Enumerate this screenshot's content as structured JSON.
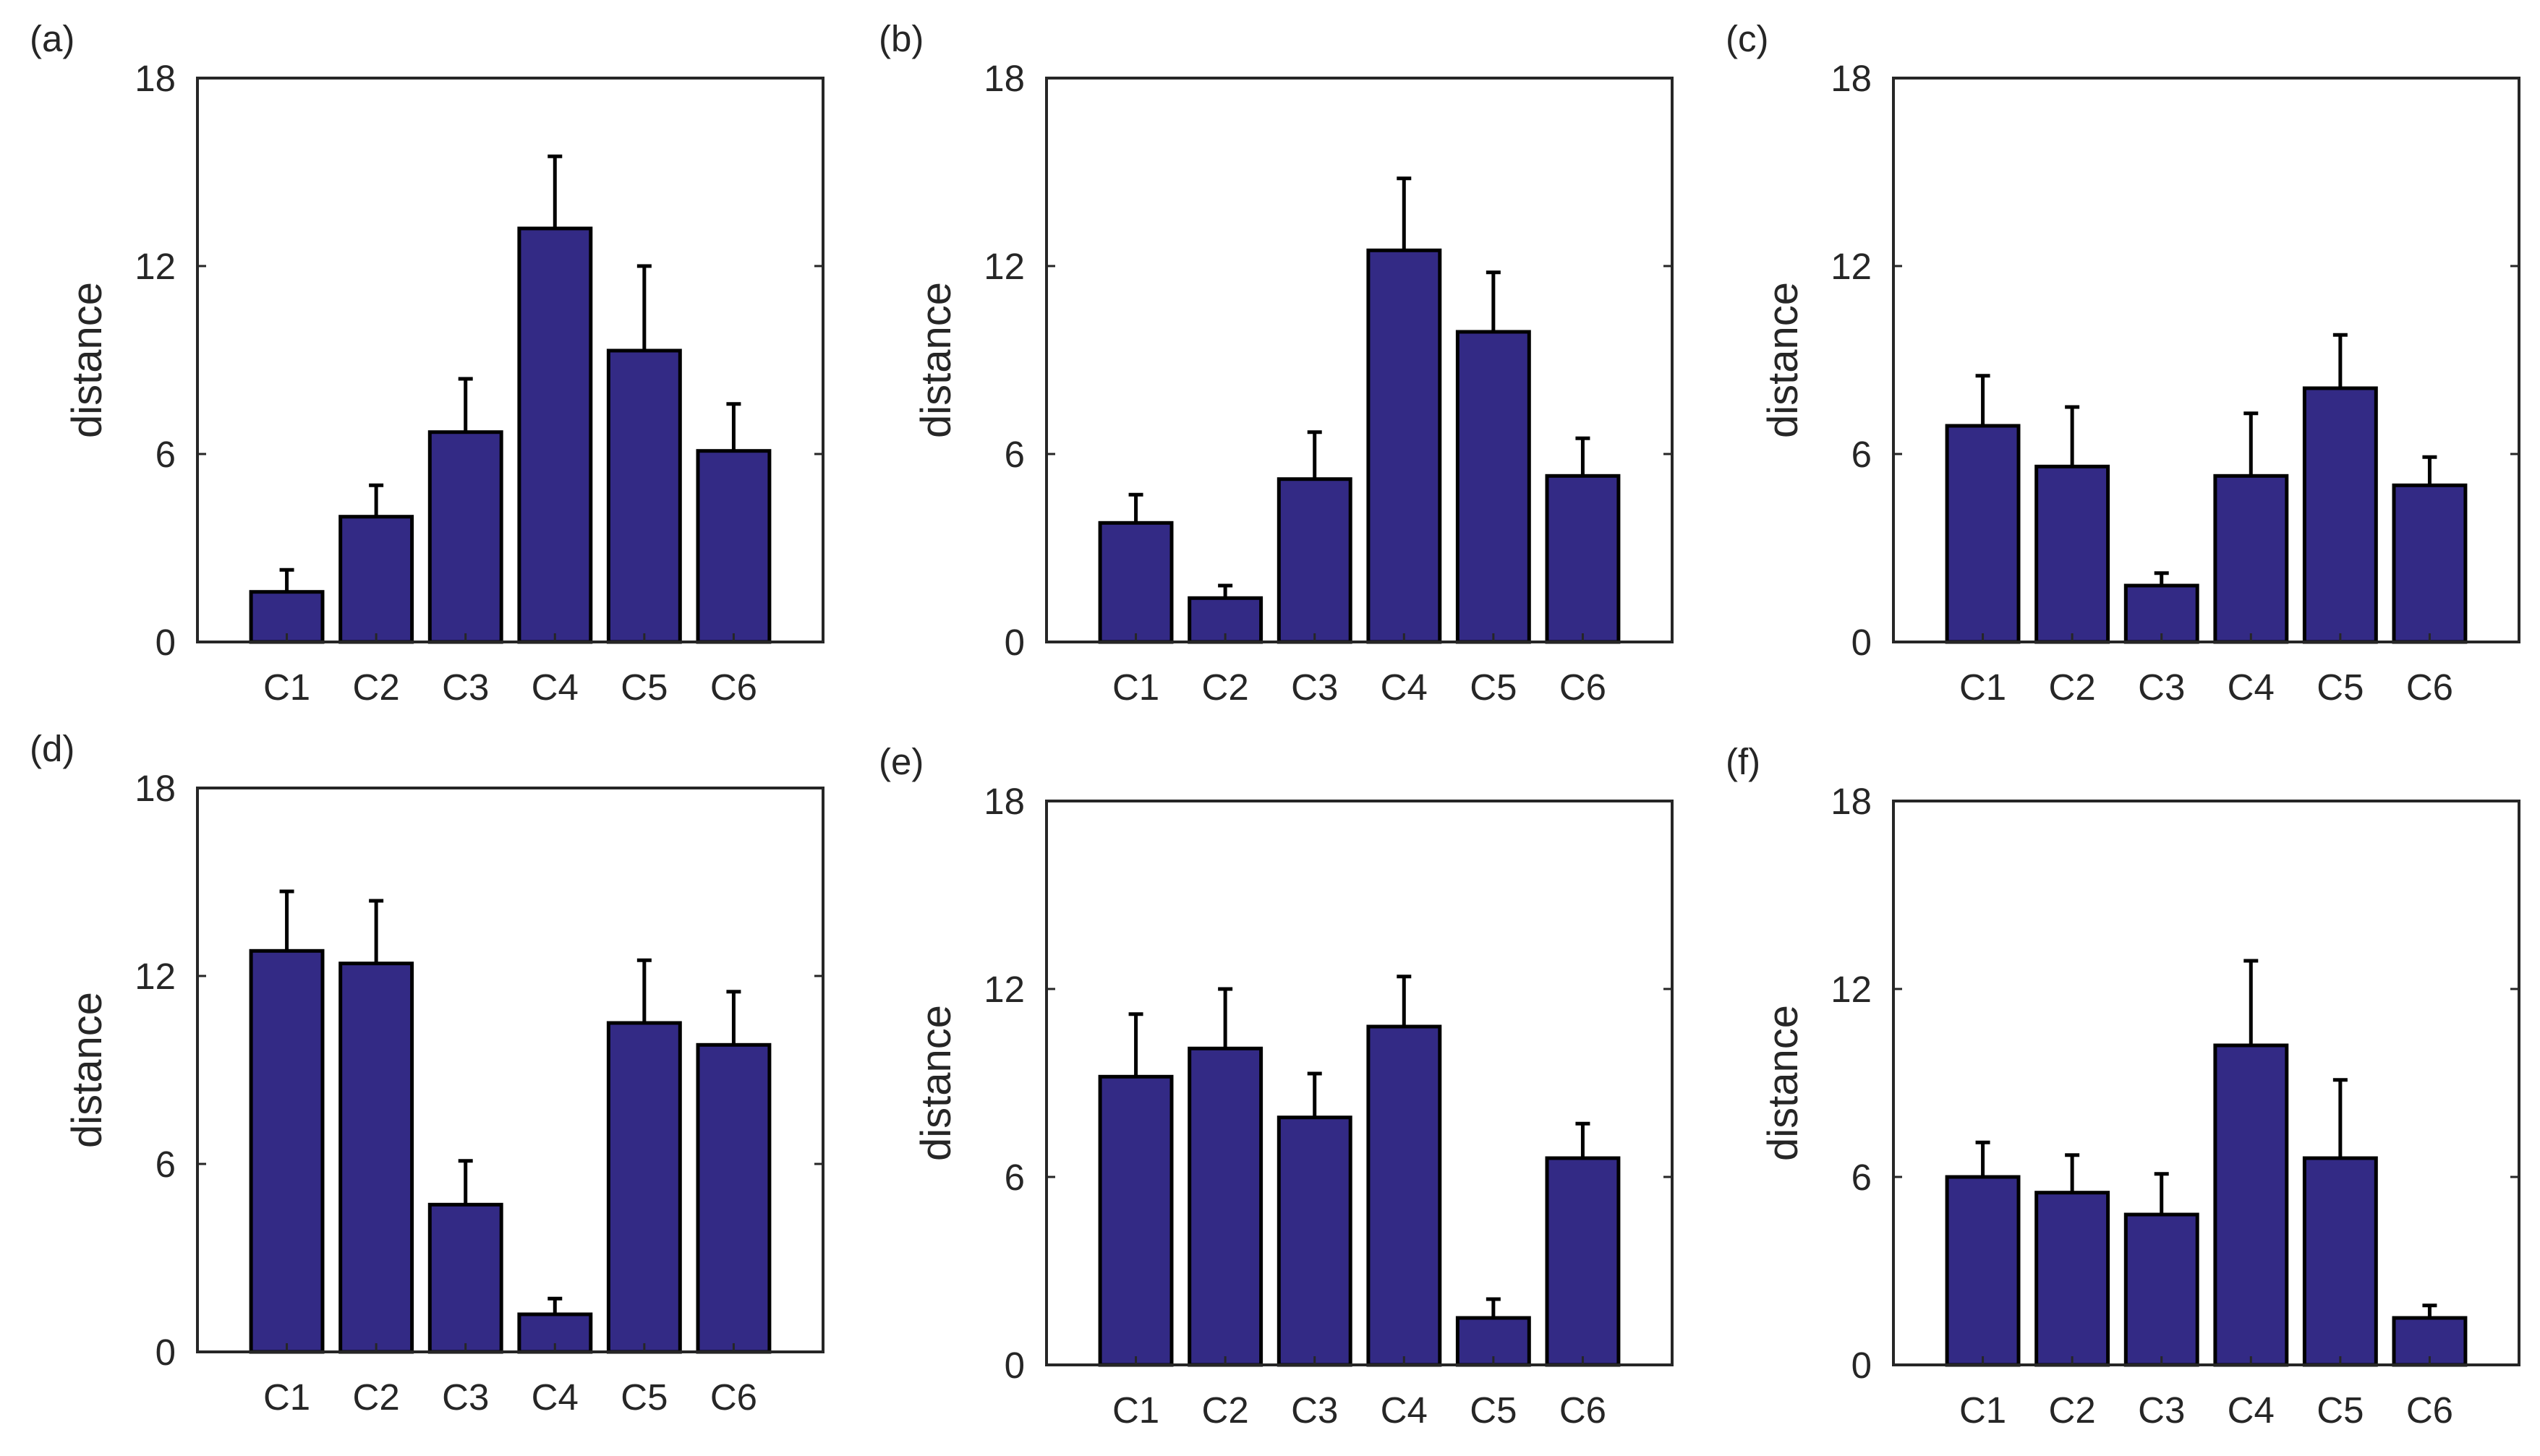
{
  "chart_data": [
    {
      "type": "bar",
      "panel_label": "(a)",
      "categories": [
        "C1",
        "C2",
        "C3",
        "C4",
        "C5",
        "C6"
      ],
      "values": [
        1.6,
        4.0,
        6.7,
        13.2,
        9.3,
        6.1
      ],
      "errors": [
        0.7,
        1.0,
        1.7,
        2.3,
        2.7,
        1.5
      ],
      "xlabel": "",
      "ylabel": "distance",
      "ylim": [
        0,
        18
      ],
      "yticks": [
        0,
        6,
        12,
        18
      ],
      "grid": false,
      "color": "#332A85"
    },
    {
      "type": "bar",
      "panel_label": "(b)",
      "categories": [
        "C1",
        "C2",
        "C3",
        "C4",
        "C5",
        "C6"
      ],
      "values": [
        3.8,
        1.4,
        5.2,
        12.5,
        9.9,
        5.3
      ],
      "errors": [
        0.9,
        0.4,
        1.5,
        2.3,
        1.9,
        1.2
      ],
      "xlabel": "",
      "ylabel": "distance",
      "ylim": [
        0,
        18
      ],
      "yticks": [
        0,
        6,
        12,
        18
      ],
      "grid": false,
      "color": "#332A85"
    },
    {
      "type": "bar",
      "panel_label": "(c)",
      "categories": [
        "C1",
        "C2",
        "C3",
        "C4",
        "C5",
        "C6"
      ],
      "values": [
        6.9,
        5.6,
        1.8,
        5.3,
        8.1,
        5.0
      ],
      "errors": [
        1.6,
        1.9,
        0.4,
        2.0,
        1.7,
        0.9
      ],
      "xlabel": "",
      "ylabel": "distance",
      "ylim": [
        0,
        18
      ],
      "yticks": [
        0,
        6,
        12,
        18
      ],
      "grid": false,
      "color": "#332A85"
    },
    {
      "type": "bar",
      "panel_label": "(d)",
      "categories": [
        "C1",
        "C2",
        "C3",
        "C4",
        "C5",
        "C6"
      ],
      "values": [
        12.8,
        12.4,
        4.7,
        1.2,
        10.5,
        9.8
      ],
      "errors": [
        1.9,
        2.0,
        1.4,
        0.5,
        2.0,
        1.7
      ],
      "xlabel": "",
      "ylabel": "distance",
      "ylim": [
        0,
        18
      ],
      "yticks": [
        0,
        6,
        12,
        18
      ],
      "grid": false,
      "color": "#332A85"
    },
    {
      "type": "bar",
      "panel_label": "(e)",
      "categories": [
        "C1",
        "C2",
        "C3",
        "C4",
        "C5",
        "C6"
      ],
      "values": [
        9.2,
        10.1,
        7.9,
        10.8,
        1.5,
        6.6
      ],
      "errors": [
        2.0,
        1.9,
        1.4,
        1.6,
        0.6,
        1.1
      ],
      "xlabel": "",
      "ylabel": "distance",
      "ylim": [
        0,
        18
      ],
      "yticks": [
        0,
        6,
        12,
        18
      ],
      "grid": false,
      "color": "#332A85"
    },
    {
      "type": "bar",
      "panel_label": "(f)",
      "categories": [
        "C1",
        "C2",
        "C3",
        "C4",
        "C5",
        "C6"
      ],
      "values": [
        6.0,
        5.5,
        4.8,
        10.2,
        6.6,
        1.5
      ],
      "errors": [
        1.1,
        1.2,
        1.3,
        2.7,
        2.5,
        0.4
      ],
      "xlabel": "",
      "ylabel": "distance",
      "ylim": [
        0,
        18
      ],
      "yticks": [
        0,
        6,
        12,
        18
      ],
      "grid": false,
      "color": "#332A85"
    }
  ]
}
